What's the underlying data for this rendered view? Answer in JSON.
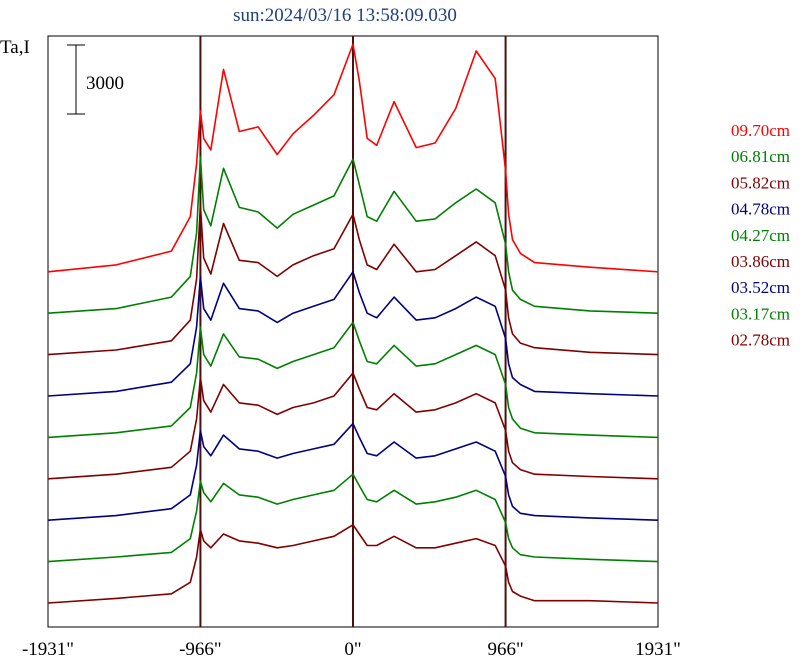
{
  "chart_data": {
    "type": "line",
    "title": "sun:2024/03/16 13:58:09.030",
    "ylabel": "Ta,I",
    "scale_bar_label": "3000",
    "scale_bar_value": 3000,
    "xlim": [
      -1931,
      1931
    ],
    "x_ticks": [
      {
        "value": -1931,
        "label": "-1931\""
      },
      {
        "value": -966,
        "label": "-966\""
      },
      {
        "value": 0,
        "label": "0\""
      },
      {
        "value": 966,
        "label": "966\""
      },
      {
        "value": 1931,
        "label": "1931\""
      }
    ],
    "vertical_markers": [
      -966,
      0,
      966
    ],
    "legend_placement": "right",
    "x": [
      -1931,
      -1500,
      -1150,
      -1030,
      -990,
      -966,
      -945,
      -900,
      -820,
      -720,
      -600,
      -480,
      -380,
      -250,
      -120,
      0,
      40,
      90,
      150,
      260,
      400,
      520,
      650,
      780,
      900,
      966,
      985,
      1010,
      1060,
      1150,
      1500,
      1931
    ],
    "series": [
      {
        "name": "09.70cm",
        "color": "#ff0000",
        "offset": 14400,
        "values": [
          0,
          300,
          900,
          2400,
          4700,
          7000,
          5800,
          5300,
          8800,
          6100,
          6300,
          5100,
          6000,
          6800,
          7700,
          9900,
          8300,
          5800,
          5500,
          7400,
          5400,
          5600,
          7100,
          9600,
          8400,
          4400,
          2500,
          1400,
          800,
          400,
          200,
          0
        ]
      },
      {
        "name": "06.81cm",
        "color": "#008000",
        "offset": 12600,
        "values": [
          0,
          200,
          700,
          1600,
          3500,
          6800,
          4500,
          3800,
          6300,
          4600,
          4400,
          3700,
          4300,
          4700,
          5100,
          6700,
          5600,
          4200,
          4000,
          5300,
          4000,
          4100,
          4800,
          5400,
          4800,
          3000,
          1800,
          1000,
          600,
          300,
          100,
          0
        ]
      },
      {
        "name": "05.82cm",
        "color": "#800000",
        "offset": 10800,
        "values": [
          0,
          200,
          600,
          1500,
          3300,
          6500,
          4200,
          3500,
          5700,
          4100,
          4000,
          3400,
          3900,
          4300,
          4600,
          6100,
          5000,
          3900,
          3700,
          4800,
          3600,
          3700,
          4300,
          4900,
          4300,
          2800,
          1600,
          900,
          500,
          300,
          100,
          0
        ]
      },
      {
        "name": "04.78cm",
        "color": "#000080",
        "offset": 9000,
        "values": [
          0,
          200,
          600,
          1400,
          3000,
          5200,
          3800,
          3300,
          4900,
          3800,
          3700,
          3200,
          3600,
          3900,
          4200,
          5400,
          4500,
          3600,
          3400,
          4300,
          3300,
          3400,
          3800,
          4300,
          3900,
          2500,
          1400,
          800,
          500,
          200,
          100,
          0
        ]
      },
      {
        "name": "04.27cm",
        "color": "#008000",
        "offset": 7200,
        "values": [
          0,
          200,
          500,
          1300,
          2800,
          4800,
          3600,
          3100,
          4500,
          3500,
          3400,
          3000,
          3300,
          3600,
          3900,
          5000,
          4200,
          3300,
          3200,
          4000,
          3100,
          3200,
          3600,
          4000,
          3600,
          2300,
          1300,
          800,
          400,
          200,
          100,
          0
        ]
      },
      {
        "name": "03.86cm",
        "color": "#800000",
        "offset": 5400,
        "values": [
          0,
          200,
          500,
          1200,
          2600,
          4400,
          3400,
          2900,
          4100,
          3300,
          3200,
          2800,
          3100,
          3300,
          3600,
          4600,
          3900,
          3100,
          3000,
          3700,
          2900,
          3000,
          3300,
          3700,
          3300,
          2100,
          1200,
          700,
          400,
          200,
          100,
          0
        ]
      },
      {
        "name": "03.52cm",
        "color": "#000080",
        "offset": 3600,
        "values": [
          0,
          200,
          500,
          1100,
          2400,
          3900,
          3200,
          2800,
          3700,
          3100,
          3000,
          2700,
          2900,
          3100,
          3300,
          4200,
          3600,
          2900,
          2800,
          3400,
          2700,
          2800,
          3100,
          3400,
          3000,
          1900,
          1100,
          600,
          300,
          200,
          100,
          0
        ]
      },
      {
        "name": "03.17cm",
        "color": "#008000",
        "offset": 1800,
        "values": [
          0,
          200,
          400,
          1000,
          2200,
          3500,
          3000,
          2600,
          3400,
          2900,
          2800,
          2500,
          2700,
          2900,
          3100,
          3800,
          3300,
          2700,
          2600,
          3100,
          2500,
          2600,
          2800,
          3100,
          2700,
          1700,
          1000,
          600,
          300,
          200,
          100,
          0
        ]
      },
      {
        "name": "02.78cm",
        "color": "#800000",
        "offset": 0,
        "values": [
          0,
          200,
          400,
          900,
          2000,
          3200,
          2700,
          2400,
          3000,
          2700,
          2600,
          2400,
          2500,
          2700,
          2900,
          3400,
          3000,
          2500,
          2500,
          2900,
          2400,
          2400,
          2600,
          2800,
          2500,
          1600,
          900,
          500,
          300,
          100,
          100,
          0
        ]
      }
    ]
  }
}
